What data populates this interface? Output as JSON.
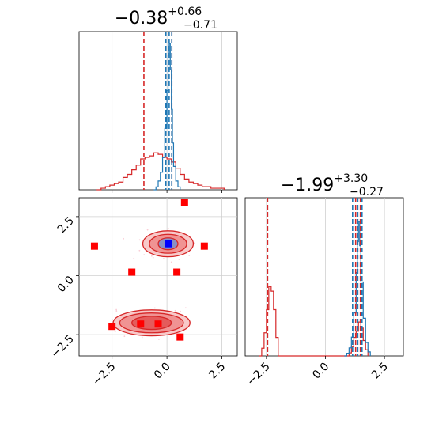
{
  "chart_data": {
    "type": "corner",
    "titles": [
      {
        "value": "−0.38",
        "upper": "+0.66",
        "lower": "−0.71"
      },
      {
        "value": "−1.99",
        "upper": "+3.30",
        "lower": "−0.27"
      }
    ],
    "x_ticks": [
      "−2.5",
      "0.0",
      "2.5"
    ],
    "y_ticks": [
      "2.5",
      "0.0",
      "−2.5"
    ],
    "range_x0": [
      -4.0,
      3.2
    ],
    "range_x1": [
      -3.4,
      3.3
    ],
    "grid": true,
    "colors": {
      "blue": "#1f77b4",
      "red": "#d62728",
      "square": "#ff0000",
      "marker": "#0000ff",
      "fill": "#f4a6a6"
    },
    "hist_top": {
      "blue": {
        "x": [
          -0.6,
          -0.5,
          -0.4,
          -0.3,
          -0.2,
          -0.1,
          0.0,
          0.05,
          0.1,
          0.15,
          0.2,
          0.25,
          0.3,
          0.4,
          0.5,
          0.6
        ],
        "h": [
          0.0,
          0.02,
          0.06,
          0.12,
          0.22,
          0.42,
          0.68,
          0.92,
          1.0,
          0.82,
          0.55,
          0.32,
          0.16,
          0.06,
          0.02,
          0.0
        ]
      },
      "red": {
        "x": [
          -3.2,
          -3.0,
          -2.8,
          -2.6,
          -2.4,
          -2.2,
          -2.0,
          -1.8,
          -1.6,
          -1.4,
          -1.2,
          -1.0,
          -0.8,
          -0.6,
          -0.4,
          -0.2,
          0.0,
          0.2,
          0.4,
          0.6,
          0.8,
          1.0,
          1.2,
          1.4,
          1.6,
          1.8,
          2.0,
          2.2,
          2.4,
          2.6
        ],
        "h": [
          0.0,
          0.01,
          0.02,
          0.03,
          0.04,
          0.05,
          0.08,
          0.1,
          0.13,
          0.16,
          0.2,
          0.21,
          0.22,
          0.24,
          0.23,
          0.21,
          0.2,
          0.18,
          0.14,
          0.1,
          0.07,
          0.05,
          0.04,
          0.03,
          0.02,
          0.02,
          0.01,
          0.01,
          0.01,
          0.0
        ]
      },
      "lines_blue": [
        -0.05,
        0.1,
        0.22
      ],
      "lines_red": [
        -1.05,
        0.22
      ]
    },
    "hist_right": {
      "blue": {
        "x": [
          0.8,
          0.9,
          1.0,
          1.1,
          1.2,
          1.3,
          1.35,
          1.4,
          1.45,
          1.5,
          1.6,
          1.7,
          1.8,
          1.9
        ],
        "h": [
          0.0,
          0.02,
          0.06,
          0.14,
          0.32,
          0.62,
          0.85,
          1.0,
          0.82,
          0.55,
          0.28,
          0.1,
          0.03,
          0.0
        ]
      },
      "red": {
        "x": [
          -2.8,
          -2.7,
          -2.6,
          -2.5,
          -2.4,
          -2.3,
          -2.2,
          -2.1,
          -2.0,
          1.0,
          1.1,
          1.2,
          1.3,
          1.4,
          1.5,
          1.6,
          1.7,
          1.8
        ],
        "h": [
          0.0,
          0.05,
          0.15,
          0.3,
          0.45,
          0.42,
          0.3,
          0.12,
          0.0,
          0.02,
          0.06,
          0.12,
          0.16,
          0.22,
          0.18,
          0.1,
          0.04,
          0.0
        ]
      },
      "lines_blue": [
        1.15,
        1.37,
        1.55
      ],
      "lines_red": [
        -2.45,
        1.28,
        1.48
      ]
    },
    "squares": [
      [
        0.8,
        3.1
      ],
      [
        -3.3,
        1.25
      ],
      [
        1.7,
        1.25
      ],
      [
        -1.6,
        0.15
      ],
      [
        0.45,
        0.15
      ],
      [
        -2.5,
        -2.15
      ],
      [
        -1.2,
        -2.05
      ],
      [
        -0.4,
        -2.05
      ],
      [
        0.6,
        -2.6
      ]
    ],
    "blue_square": [
      0.05,
      1.35
    ],
    "contours": [
      {
        "cx": 0.05,
        "cy": 1.35,
        "rx": 1.15,
        "ry": 0.55,
        "fill": "#f8c9c9"
      },
      {
        "cx": 0.05,
        "cy": 1.35,
        "rx": 0.85,
        "ry": 0.4,
        "fill": "#f09393"
      },
      {
        "cx": 0.05,
        "cy": 1.35,
        "rx": 0.45,
        "ry": 0.25,
        "fill": "#8a8fc4"
      },
      {
        "cx": -0.7,
        "cy": -2.0,
        "rx": 1.75,
        "ry": 0.55,
        "fill": "#f8c9c9"
      },
      {
        "cx": -0.7,
        "cy": -2.0,
        "rx": 1.45,
        "ry": 0.42,
        "fill": "#f09393"
      },
      {
        "cx": -0.7,
        "cy": -2.0,
        "rx": 0.9,
        "ry": 0.28,
        "fill": "#e45b5b"
      }
    ]
  }
}
